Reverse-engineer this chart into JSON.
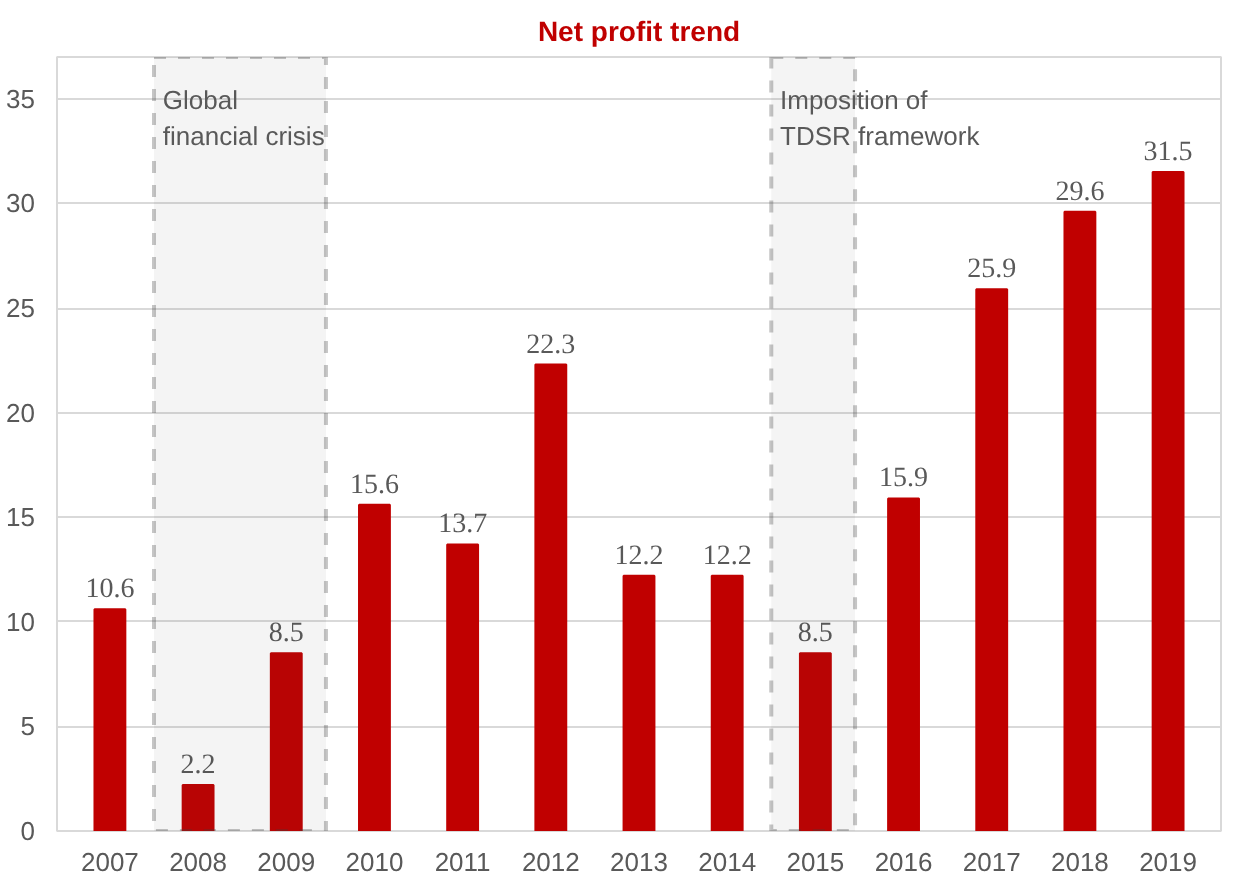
{
  "chart_data": {
    "type": "bar",
    "title": "Net profit trend",
    "categories": [
      "2007",
      "2008",
      "2009",
      "2010",
      "2011",
      "2012",
      "2013",
      "2014",
      "2015",
      "2016",
      "2017",
      "2018",
      "2019"
    ],
    "values": [
      10.6,
      2.2,
      8.5,
      15.6,
      13.7,
      22.3,
      12.2,
      12.2,
      8.5,
      15.9,
      25.9,
      29.6,
      31.5
    ],
    "color": "#c00000",
    "ylim": [
      0,
      37
    ],
    "yticks": [
      0,
      5,
      10,
      15,
      20,
      25,
      30,
      35
    ],
    "grid": "y",
    "data_labels": true,
    "bands": [
      {
        "axis": "x",
        "from": "2008",
        "to": "2009",
        "label": "Global\nfinancial crisis",
        "color": "#404040"
      },
      {
        "axis": "x",
        "from": "2015",
        "to": "2015",
        "label": "Imposition of\nTDSR framework",
        "color": "#404040"
      }
    ]
  }
}
